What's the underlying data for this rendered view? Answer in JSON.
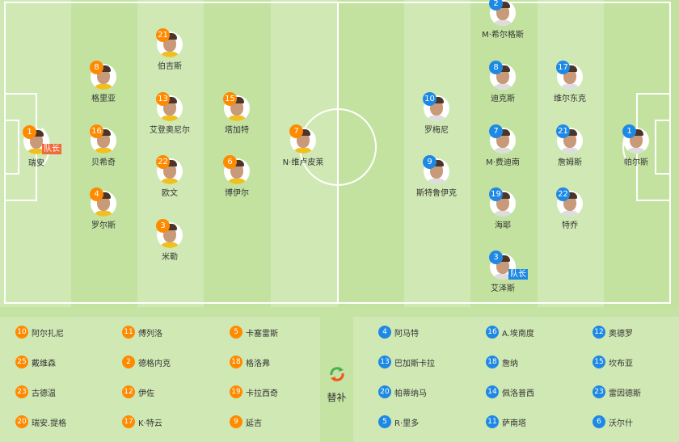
{
  "colors": {
    "home": "#ff8a00",
    "away": "#1e88e5",
    "pitch_light": "#d0e8b4",
    "pitch_dark": "#c3e2a0"
  },
  "captain_label": "队长",
  "home": [
    {
      "num": "1",
      "name": "瑞安",
      "captain": true
    },
    {
      "num": "8",
      "name": "格里亚"
    },
    {
      "num": "16",
      "name": "贝希奇"
    },
    {
      "num": "4",
      "name": "罗尔斯"
    },
    {
      "num": "21",
      "name": "伯吉斯"
    },
    {
      "num": "13",
      "name": "艾登奥尼尔"
    },
    {
      "num": "22",
      "name": "欧文"
    },
    {
      "num": "3",
      "name": "米勒"
    },
    {
      "num": "15",
      "name": "塔加特"
    },
    {
      "num": "6",
      "name": "博伊尔"
    },
    {
      "num": "7",
      "name": "N·维卢皮莱"
    }
  ],
  "away": [
    {
      "num": "2",
      "name": "M·希尔格斯"
    },
    {
      "num": "8",
      "name": "迪克斯"
    },
    {
      "num": "17",
      "name": "维尔东克"
    },
    {
      "num": "10",
      "name": "罗梅尼"
    },
    {
      "num": "7",
      "name": "M·费迪南"
    },
    {
      "num": "21",
      "name": "詹姆斯"
    },
    {
      "num": "1",
      "name": "帕尔斯"
    },
    {
      "num": "9",
      "name": "斯特鲁伊克"
    },
    {
      "num": "19",
      "name": "海耶"
    },
    {
      "num": "22",
      "name": "特乔"
    },
    {
      "num": "3",
      "name": "艾泽斯",
      "captain": true
    }
  ],
  "subs_label": "替补",
  "subs_icon": "substitution-arrows-icon",
  "home_subs": [
    {
      "num": "10",
      "name": "阿尔扎尼"
    },
    {
      "num": "11",
      "name": "傅列洛"
    },
    {
      "num": "5",
      "name": "卡塞雷斯"
    },
    {
      "num": "25",
      "name": "戴维森"
    },
    {
      "num": "2",
      "name": "德格内克"
    },
    {
      "num": "18",
      "name": "格洛弗"
    },
    {
      "num": "23",
      "name": "古德温"
    },
    {
      "num": "12",
      "name": "伊佐"
    },
    {
      "num": "19",
      "name": "卡拉西奇"
    },
    {
      "num": "20",
      "name": "瑞安.提格"
    },
    {
      "num": "17",
      "name": "K·特云"
    },
    {
      "num": "9",
      "name": "延吉"
    }
  ],
  "away_subs": [
    {
      "num": "4",
      "name": "阿马特"
    },
    {
      "num": "16",
      "name": "A.埃南度"
    },
    {
      "num": "12",
      "name": "奥德罗"
    },
    {
      "num": "13",
      "name": "巴加斯卡拉"
    },
    {
      "num": "18",
      "name": "詹纳"
    },
    {
      "num": "15",
      "name": "坎布亚"
    },
    {
      "num": "20",
      "name": "帕蒂纳马"
    },
    {
      "num": "14",
      "name": "佩洛普西"
    },
    {
      "num": "23",
      "name": "雷因德斯"
    },
    {
      "num": "5",
      "name": "R·里多"
    },
    {
      "num": "11",
      "name": "萨南塔"
    },
    {
      "num": "6",
      "name": "沃尔什"
    }
  ]
}
